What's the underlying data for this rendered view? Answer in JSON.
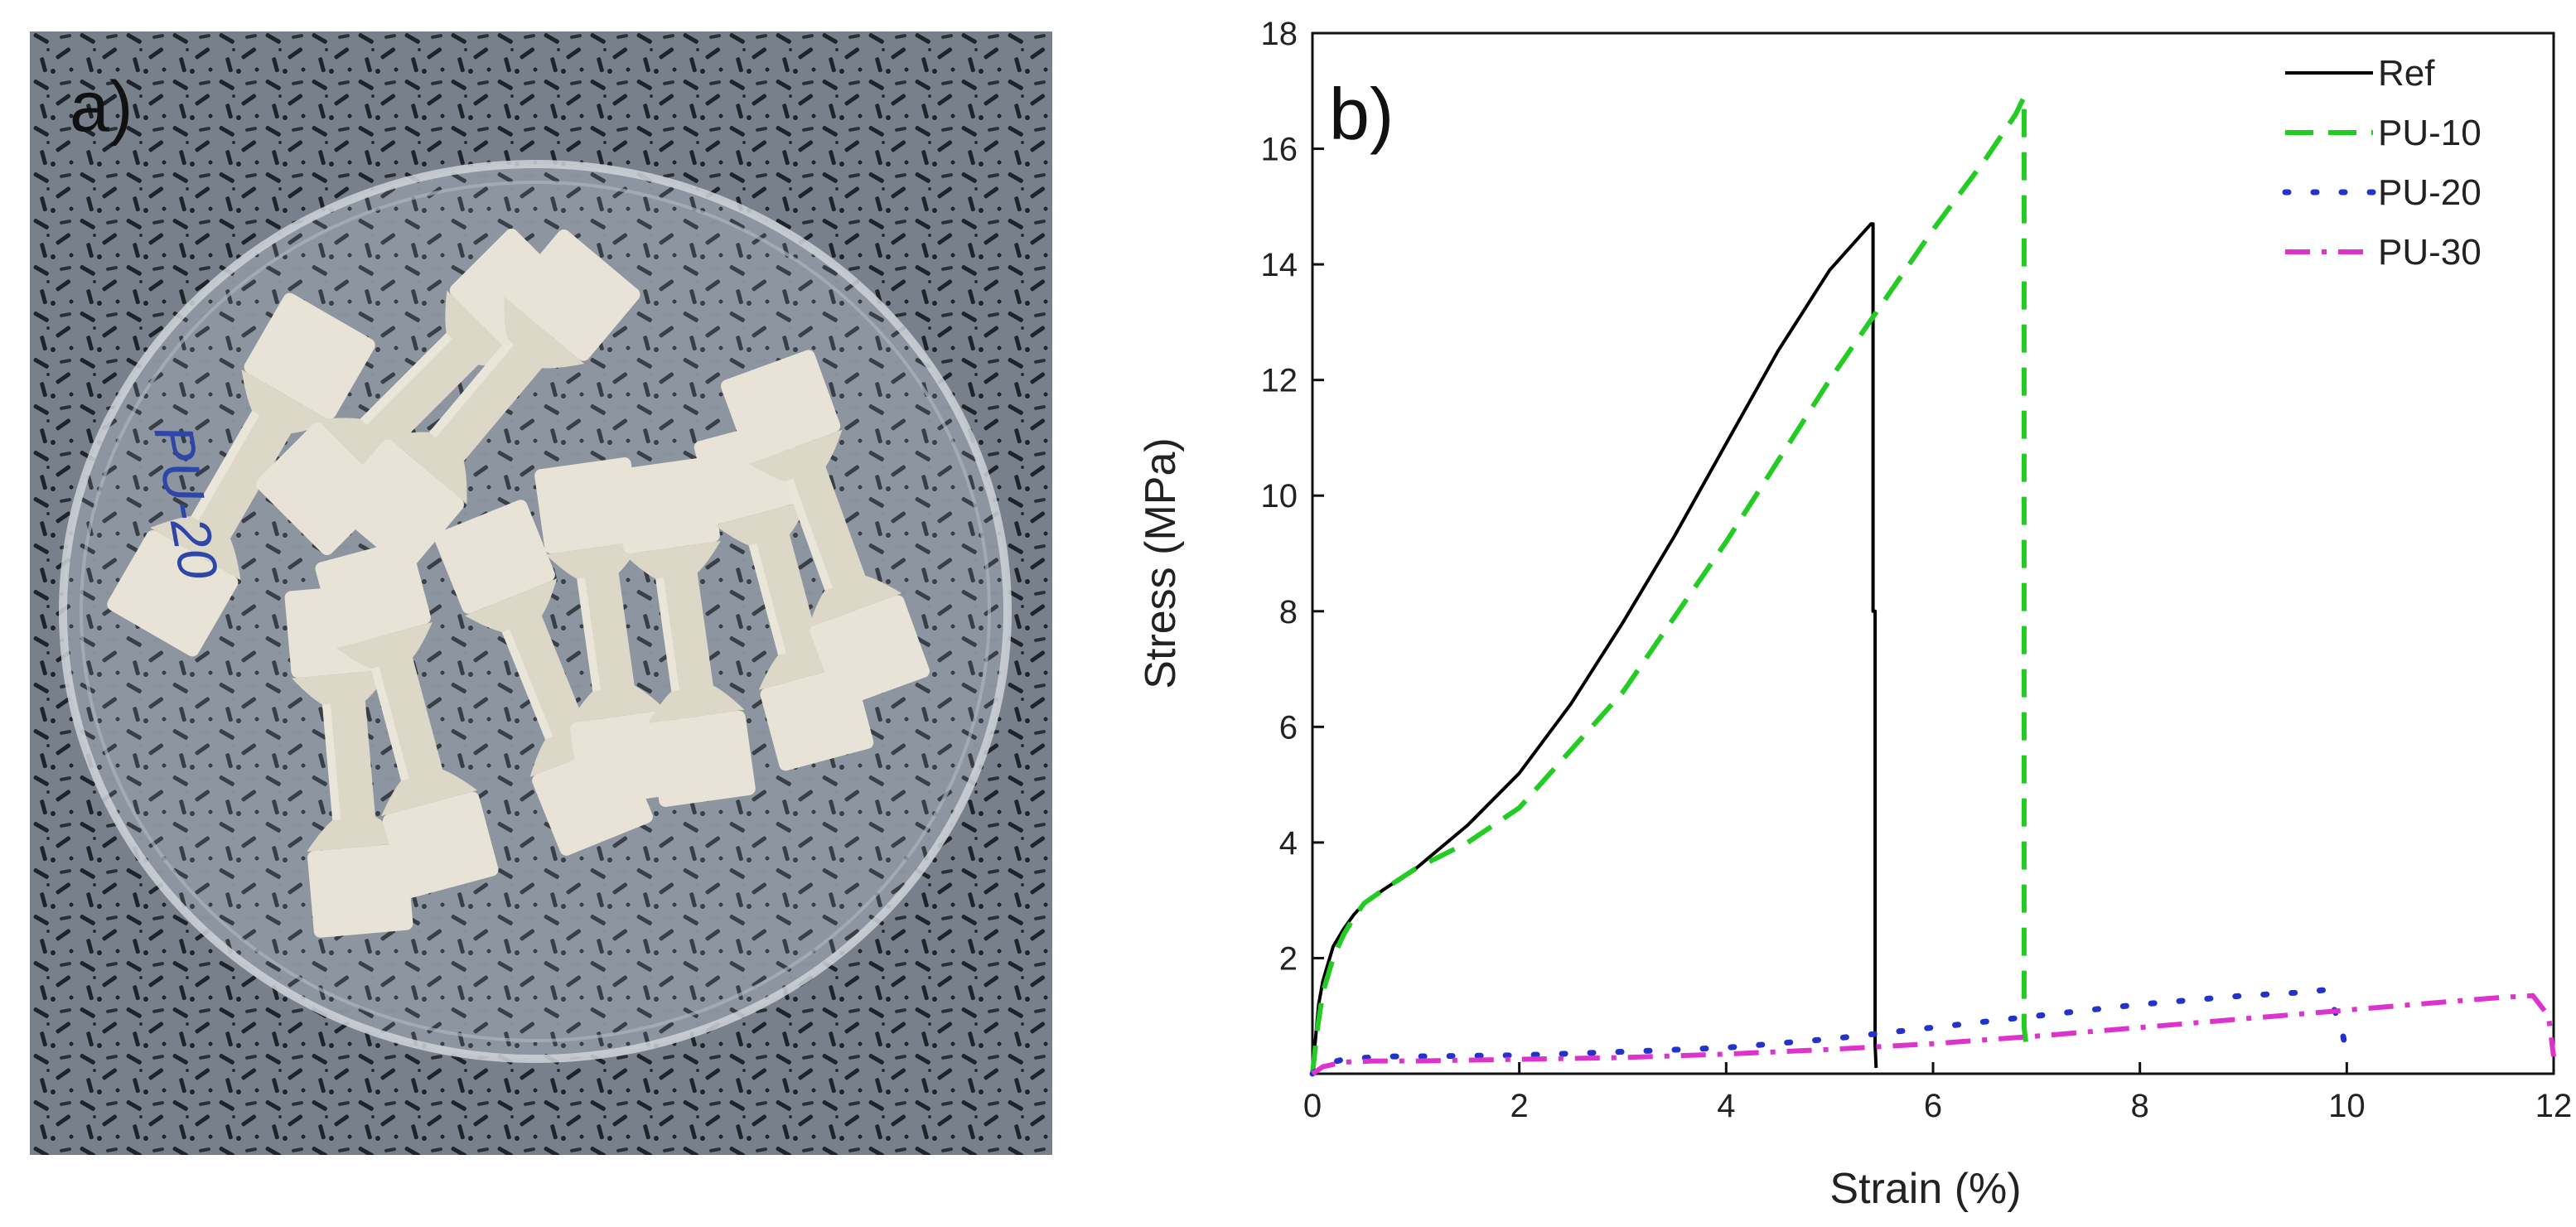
{
  "panel_a": {
    "label": "a)",
    "handwriting": "PU-20"
  },
  "chart_data": {
    "type": "line",
    "panel_label": "b)",
    "title": "",
    "xlabel": "Strain (%)",
    "ylabel": "Stress (MPa)",
    "xlim": [
      0,
      12
    ],
    "ylim": [
      0,
      18
    ],
    "xticks": [
      0,
      2,
      4,
      6,
      8,
      10,
      12
    ],
    "yticks": [
      2,
      4,
      6,
      8,
      10,
      12,
      14,
      16,
      18
    ],
    "grid": false,
    "legend_position": "top-right",
    "series": [
      {
        "name": "Ref",
        "color": "#000000",
        "style": "solid",
        "x": [
          0,
          0.03,
          0.06,
          0.1,
          0.15,
          0.2,
          0.3,
          0.4,
          0.5,
          0.7,
          1.0,
          1.5,
          2.0,
          2.5,
          3.0,
          3.5,
          4.0,
          4.5,
          5.0,
          5.3,
          5.4,
          5.42,
          5.42,
          5.44,
          5.44,
          5.45
        ],
        "y": [
          0,
          0.6,
          1.2,
          1.6,
          1.9,
          2.2,
          2.5,
          2.75,
          2.95,
          3.2,
          3.55,
          4.3,
          5.2,
          6.4,
          7.8,
          9.3,
          10.9,
          12.5,
          13.9,
          14.5,
          14.7,
          14.7,
          8.0,
          8.0,
          0.5,
          0.1
        ]
      },
      {
        "name": "PU-10",
        "color": "#22cc22",
        "style": "dashed",
        "x": [
          0,
          0.05,
          0.1,
          0.2,
          0.3,
          0.4,
          0.5,
          0.7,
          1.0,
          1.5,
          2.0,
          2.5,
          3.0,
          3.5,
          4.0,
          4.5,
          5.0,
          5.5,
          6.0,
          6.5,
          6.8,
          6.88,
          6.88,
          6.9
        ],
        "y": [
          0,
          0.8,
          1.4,
          2.0,
          2.4,
          2.7,
          2.95,
          3.2,
          3.55,
          4.0,
          4.6,
          5.6,
          6.6,
          7.9,
          9.2,
          10.6,
          12.0,
          13.3,
          14.6,
          15.8,
          16.6,
          16.9,
          0.8,
          0.5
        ]
      },
      {
        "name": "PU-20",
        "color": "#2233cc",
        "style": "dotted",
        "x": [
          0,
          0.1,
          0.3,
          0.7,
          1.0,
          2.0,
          3.0,
          4.0,
          5.0,
          6.0,
          7.0,
          8.0,
          9.0,
          9.5,
          9.8,
          9.95,
          10.0
        ],
        "y": [
          0,
          0.15,
          0.25,
          0.3,
          0.3,
          0.32,
          0.38,
          0.45,
          0.6,
          0.8,
          1.0,
          1.2,
          1.35,
          1.4,
          1.45,
          0.8,
          0.3
        ]
      },
      {
        "name": "PU-30",
        "color": "#dd33cc",
        "style": "dash-dot",
        "x": [
          0,
          0.1,
          0.3,
          0.6,
          1.0,
          2.0,
          3.0,
          4.0,
          5.0,
          6.0,
          7.0,
          8.0,
          9.0,
          10.0,
          11.0,
          11.5,
          11.8,
          11.95,
          12.0
        ],
        "y": [
          0,
          0.12,
          0.2,
          0.22,
          0.22,
          0.25,
          0.28,
          0.34,
          0.42,
          0.52,
          0.65,
          0.8,
          0.95,
          1.1,
          1.25,
          1.32,
          1.35,
          1.0,
          0.3
        ]
      }
    ]
  }
}
